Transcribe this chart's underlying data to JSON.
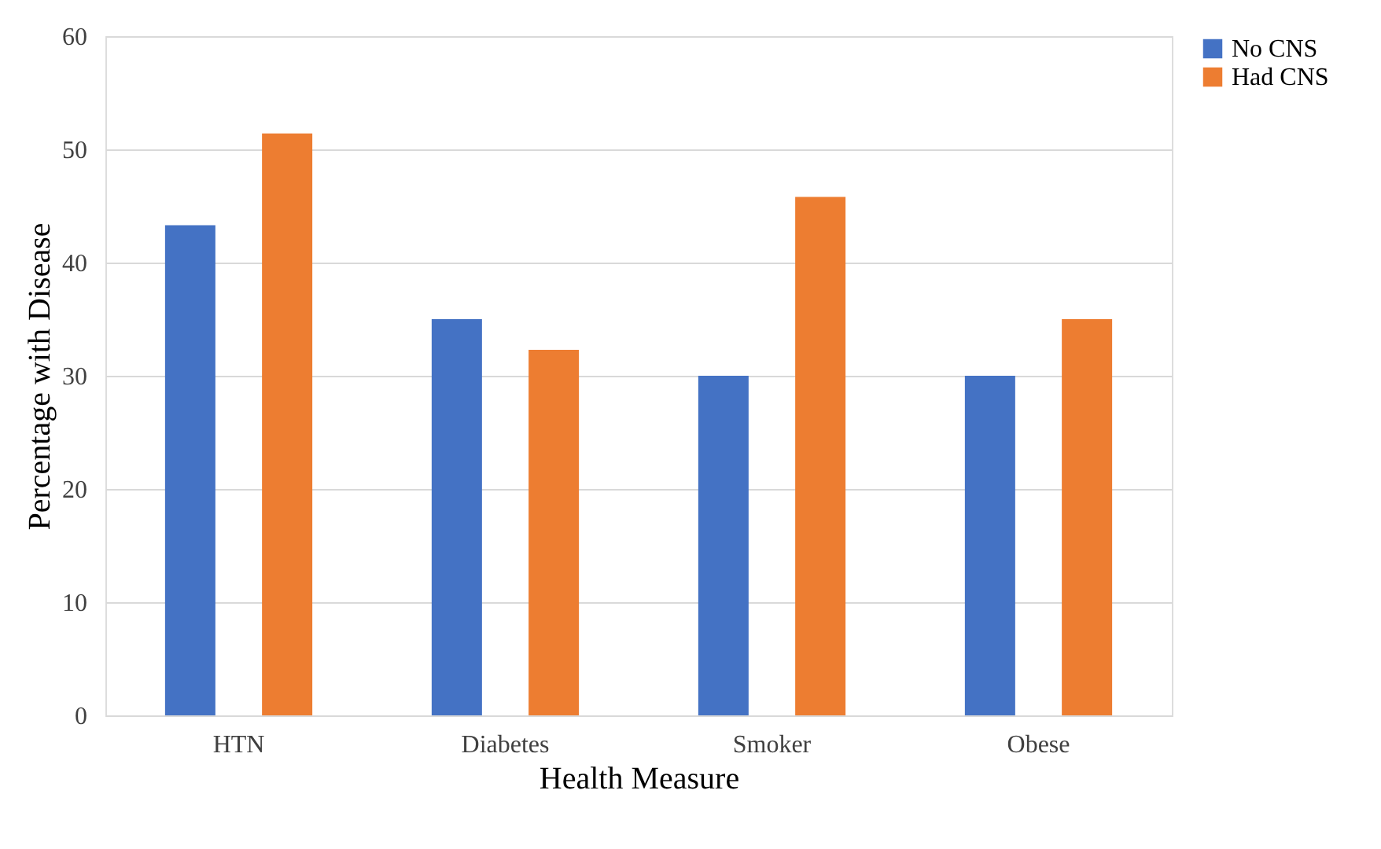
{
  "chart_data": {
    "type": "bar",
    "xlabel": "Health Measure",
    "ylabel": "Percentage with Disease",
    "categories": [
      "HTN",
      "Diabetes",
      "Smoker",
      "Obese"
    ],
    "series": [
      {
        "name": "No CNS",
        "color": "#4472c4",
        "values": [
          43.3,
          35,
          30,
          30
        ]
      },
      {
        "name": "Had CNS",
        "color": "#ed7d31",
        "values": [
          51.4,
          32.3,
          45.8,
          35
        ]
      }
    ],
    "ylim": [
      0,
      60
    ],
    "yticks": [
      0,
      10,
      20,
      30,
      40,
      50,
      60
    ],
    "grid": "y",
    "legend": "right"
  }
}
